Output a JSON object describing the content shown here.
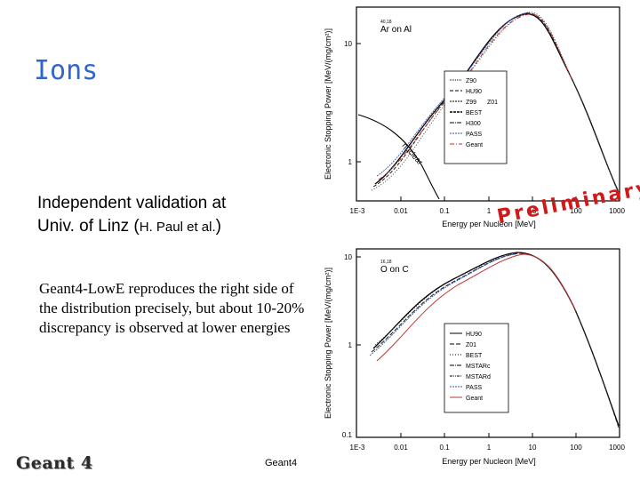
{
  "slide": {
    "title": "Ions",
    "validation_line1": "Independent validation at",
    "validation_line2a": "Univ. of  Linz (",
    "validation_line2b": "H. Paul et al.",
    "validation_line2c": ")",
    "body": "Geant4-LowE reproduces the right side of the distribution precisely, but about 10-20% discrepancy is observed at lower energies",
    "footer": "Geant4",
    "logo": "Geant 4",
    "stamp": "Preliminary!"
  },
  "chart_data": [
    {
      "type": "line",
      "ion_label_sup": "40,18",
      "ion_label": "Ar on Al",
      "ylabel": "Electronic Stopping Power [MeV/(mg/cm²)]",
      "xlabel": "Energy per Nucleon [MeV]",
      "x_ticks": [
        "1E-3",
        "0.01",
        "0.1",
        "1",
        "10",
        "100",
        "1000"
      ],
      "y_ticks": [
        "1",
        "10"
      ],
      "xscale": "log",
      "yscale": "log",
      "xlim": [
        0.001,
        1000
      ],
      "ylim": [
        0.3,
        22
      ],
      "annotation": "nuclear",
      "legend": [
        "Z90",
        "HU90",
        "Z99",
        "Z01",
        "BEST",
        "H300",
        "PASS",
        "Geant"
      ]
    },
    {
      "type": "line",
      "ion_label_sup": "16,18",
      "ion_label": "O on C",
      "ylabel": "Electronic Stopping Power [MeV/(mg/cm²)]",
      "xlabel": "Energy per Nucleon [MeV]",
      "x_ticks": [
        "1E-3",
        "0.01",
        "0.1",
        "1",
        "10",
        "100",
        "1000"
      ],
      "y_ticks": [
        "0.1",
        "1",
        "10"
      ],
      "xscale": "log",
      "yscale": "log",
      "xlim": [
        0.001,
        1000
      ],
      "ylim": [
        0.1,
        12
      ],
      "legend": [
        "HU90",
        "Z01",
        "BEST",
        "MSTARc",
        "MSTARd",
        "PASS",
        "Geant"
      ]
    }
  ]
}
